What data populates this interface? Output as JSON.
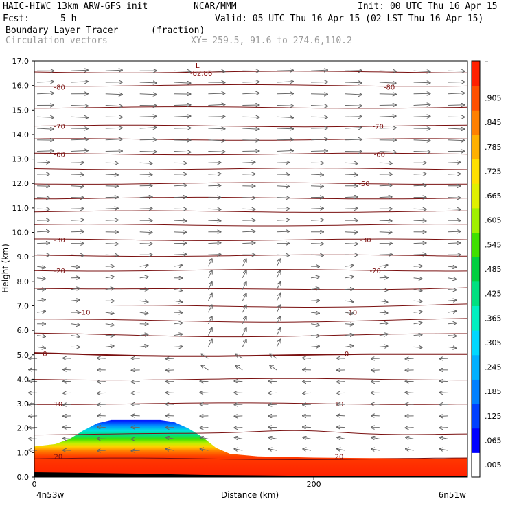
{
  "header": {
    "model": "HAIC-HIWC 13km ARW-GFS init",
    "org": "NCAR/MMM",
    "init": "Init: 00 UTC Thu 16 Apr 15",
    "fcst_label": "Fcst:",
    "fcst_value": "5 h",
    "valid": "Valid: 05 UTC Thu 16 Apr 15 (02 LST Thu 16 Apr 15)",
    "field1_name": "Boundary Layer Tracer",
    "field1_units": "(fraction)",
    "field2_name": "Circulation vectors",
    "xy_range": "XY= 259.5, 91.6 to 274.6,110.2"
  },
  "chart_data": {
    "type": "heatmap",
    "xlabel": "Distance (km)",
    "ylabel": "Height (km)",
    "x_ticks": [
      0,
      200
    ],
    "x_range": [
      0,
      310
    ],
    "y_ticks": [
      "0.0",
      "1.0",
      "2.0",
      "3.0",
      "4.0",
      "5.0",
      "6.0",
      "7.0",
      "8.0",
      "9.0",
      "10.0",
      "11.0",
      "12.0",
      "13.0",
      "14.0",
      "15.0",
      "16.0",
      "17.0"
    ],
    "y_range": [
      0,
      17
    ],
    "x_endpoints": {
      "left": "4n53w",
      "right": "6n51w"
    },
    "colorbar": {
      "labels": [
        ".005",
        ".065",
        ".125",
        ".185",
        ".245",
        ".305",
        ".365",
        ".425",
        ".485",
        ".545",
        ".605",
        ".665",
        ".725",
        ".785",
        ".845",
        ".905"
      ],
      "colors": [
        "#ffffff",
        "#0000ff",
        "#0040ff",
        "#0080ff",
        "#00b0ff",
        "#00d8ff",
        "#00f0c0",
        "#00e080",
        "#00d040",
        "#40e000",
        "#a0f000",
        "#e0f000",
        "#ffe000",
        "#ffb000",
        "#ff8000",
        "#ff5000",
        "#ff2000"
      ]
    },
    "tracer_top_km": [
      [
        0,
        1.25
      ],
      [
        15,
        1.35
      ],
      [
        25,
        1.55
      ],
      [
        35,
        1.9
      ],
      [
        45,
        2.2
      ],
      [
        55,
        2.33
      ],
      [
        90,
        2.33
      ],
      [
        100,
        2.25
      ],
      [
        110,
        2.0
      ],
      [
        120,
        1.65
      ],
      [
        130,
        1.2
      ],
      [
        140,
        0.95
      ],
      [
        160,
        0.85
      ],
      [
        200,
        0.8
      ],
      [
        240,
        0.78
      ],
      [
        270,
        0.78
      ],
      [
        290,
        0.75
      ],
      [
        310,
        0.8
      ]
    ],
    "temperature_contours": [
      {
        "label": "-80",
        "label_x": [
          14,
          250
        ]
      },
      {
        "label": "-70",
        "label_x": [
          14,
          242
        ]
      },
      {
        "label": "-60",
        "label_x": [
          14,
          243
        ]
      },
      {
        "label": "-50",
        "label_x": [
          232
        ]
      },
      {
        "label": "-30",
        "label_x": [
          14,
          233
        ]
      },
      {
        "label": "-20",
        "label_x": [
          14,
          240
        ]
      },
      {
        "label": "-10",
        "label_x": [
          32,
          223
        ]
      },
      {
        "label": "0",
        "label_x": [
          6,
          222
        ]
      },
      {
        "label": "10",
        "label_x": [
          14,
          215
        ]
      },
      {
        "label": "20",
        "label_x": [
          14,
          215
        ]
      }
    ],
    "min_label": {
      "letter": "L",
      "value": "-82.86",
      "x": 120,
      "y": 16.5
    }
  }
}
